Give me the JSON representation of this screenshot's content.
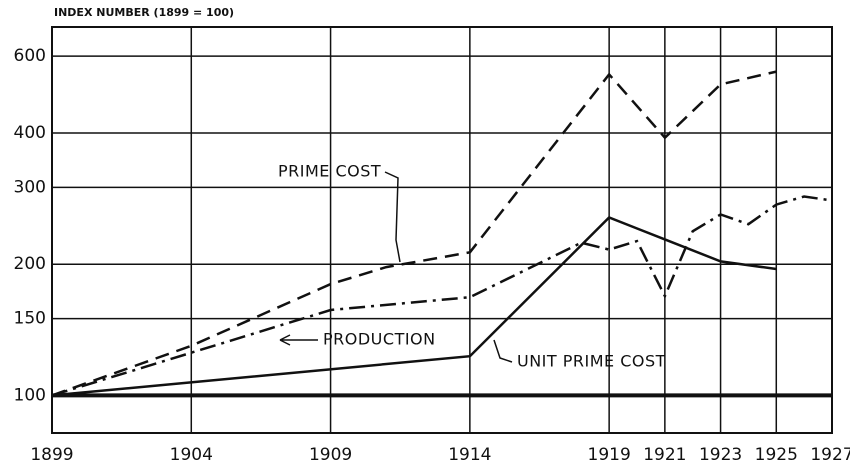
{
  "chart_data": {
    "type": "line",
    "title": "INDEX NUMBER (1899 = 100)",
    "log_scale": true,
    "grid": true,
    "xlim": [
      1899,
      1927
    ],
    "xticks": [
      1899,
      1904,
      1909,
      1914,
      1919,
      1921,
      1923,
      1925,
      1927
    ],
    "ylim": [
      82,
      700
    ],
    "yticks": [
      100,
      150,
      200,
      300,
      400,
      600
    ],
    "annotations": [
      "PRIME COST",
      "PRODUCTION",
      "UNIT PRIME COST"
    ],
    "series": [
      {
        "name": "PRIME COST",
        "color": "#111",
        "style": "dashed",
        "x": [
          1899,
          1904,
          1909,
          1911,
          1914,
          1919,
          1921,
          1923,
          1925
        ],
        "values": [
          100,
          130,
          180,
          197,
          213,
          545,
          390,
          517,
          553
        ]
      },
      {
        "name": "PRODUCTION",
        "color": "#111",
        "style": "dashdot",
        "x": [
          1899,
          1909,
          1914,
          1918,
          1919,
          1920,
          1921,
          1922,
          1923,
          1924,
          1925,
          1926,
          1927
        ],
        "values": [
          100,
          157,
          168,
          224,
          216,
          226,
          169,
          238,
          260,
          247,
          274,
          286,
          280
        ]
      },
      {
        "name": "UNIT PRIME COST",
        "color": "#111",
        "style": "solid",
        "x": [
          1899,
          1914,
          1919,
          1921,
          1923,
          1925
        ],
        "values": [
          100,
          123,
          256,
          228,
          203,
          195
        ]
      }
    ]
  }
}
